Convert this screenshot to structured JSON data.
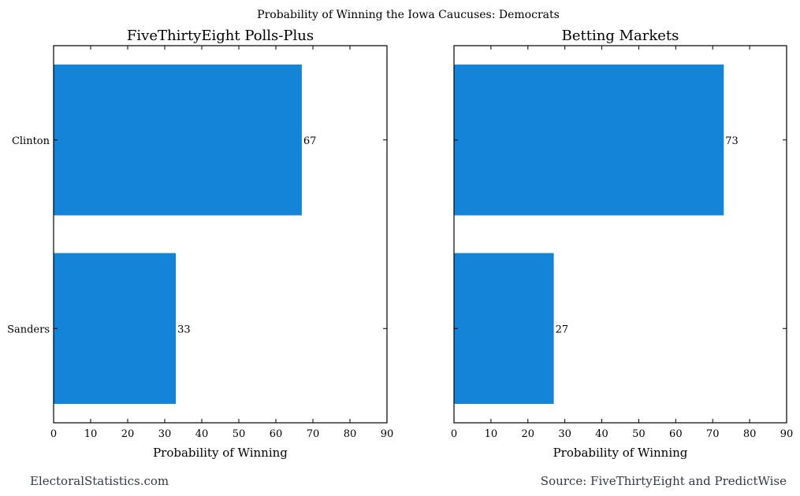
{
  "suptitle": "Probability of Winning the Iowa Caucuses: Democrats",
  "footer_left": "ElectoralStatistics.com",
  "footer_right": "Source: FiveThirtyEight and PredictWise",
  "colors": {
    "bar": "#1384d8",
    "axis": "#000000",
    "footer": "#333a40"
  },
  "chart_data": [
    {
      "type": "bar",
      "orientation": "horizontal",
      "title": "FiveThirtyEight Polls-Plus",
      "categories": [
        "Clinton",
        "Sanders"
      ],
      "values": [
        67,
        33
      ],
      "data_labels": [
        "67",
        "33"
      ],
      "xlabel": "Probability of Winning",
      "ylabel": "",
      "xlim": [
        0,
        90
      ],
      "xticks": [
        "0",
        "10",
        "20",
        "30",
        "40",
        "50",
        "60",
        "70",
        "80",
        "90"
      ],
      "show_category_labels": true,
      "grid": false
    },
    {
      "type": "bar",
      "orientation": "horizontal",
      "title": "Betting Markets",
      "categories": [
        "Clinton",
        "Sanders"
      ],
      "values": [
        73,
        27
      ],
      "data_labels": [
        "73",
        "27"
      ],
      "xlabel": "Probability of Winning",
      "ylabel": "",
      "xlim": [
        0,
        90
      ],
      "xticks": [
        "0",
        "10",
        "20",
        "30",
        "40",
        "50",
        "60",
        "70",
        "80",
        "90"
      ],
      "show_category_labels": false,
      "grid": false
    }
  ]
}
